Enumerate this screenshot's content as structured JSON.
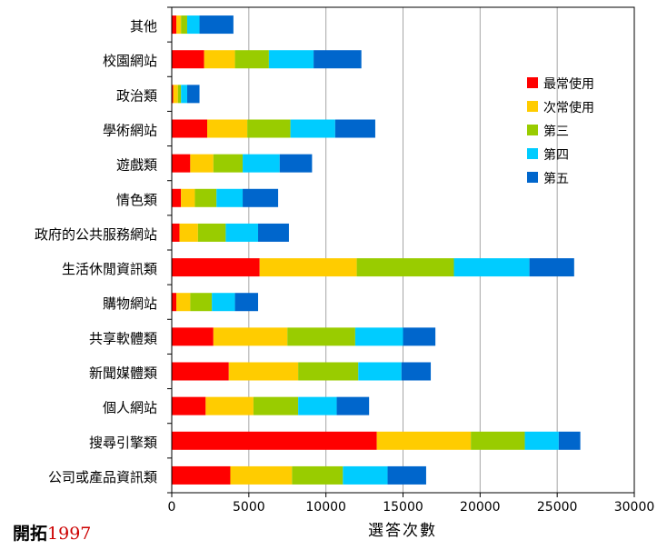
{
  "brand": {
    "name": "開拓",
    "year": "1997"
  },
  "chart_data": {
    "type": "bar",
    "orientation": "horizontal",
    "stacked": true,
    "title": "",
    "xlabel": "選答次數",
    "ylabel": "",
    "xlim": [
      0,
      30000
    ],
    "xticks": [
      0,
      5000,
      10000,
      15000,
      20000,
      25000,
      30000
    ],
    "grid": "vertical",
    "legend_position": "top-right",
    "categories": [
      "其他",
      "校園網站",
      "政治類",
      "學術網站",
      "遊戲類",
      "情色類",
      "政府的公共服務網站",
      "生活休閒資訊類",
      "購物網站",
      "共享軟體類",
      "新聞媒體類",
      "個人網站",
      "搜尋引擎類",
      "公司或產品資訊類"
    ],
    "series": [
      {
        "name": "最常使用",
        "color": "#ff0000",
        "values": [
          300,
          2100,
          100,
          2300,
          1200,
          600,
          500,
          5700,
          300,
          2700,
          3700,
          2200,
          13300,
          3800
        ]
      },
      {
        "name": "次常使用",
        "color": "#ffcc00",
        "values": [
          300,
          2000,
          300,
          2600,
          1500,
          900,
          1200,
          6300,
          900,
          4800,
          4500,
          3100,
          6100,
          4000
        ]
      },
      {
        "name": "第三",
        "color": "#99cc00",
        "values": [
          400,
          2200,
          200,
          2800,
          1900,
          1400,
          1800,
          6300,
          1400,
          4400,
          3900,
          2900,
          3500,
          3300
        ]
      },
      {
        "name": "第四",
        "color": "#00ccff",
        "values": [
          800,
          2900,
          400,
          2900,
          2400,
          1700,
          2100,
          4900,
          1500,
          3100,
          2800,
          2500,
          2200,
          2900
        ]
      },
      {
        "name": "第五",
        "color": "#0066cc",
        "values": [
          2200,
          3100,
          800,
          2600,
          2100,
          2300,
          2000,
          2900,
          1500,
          2100,
          1900,
          2100,
          1400,
          2500
        ]
      }
    ]
  }
}
